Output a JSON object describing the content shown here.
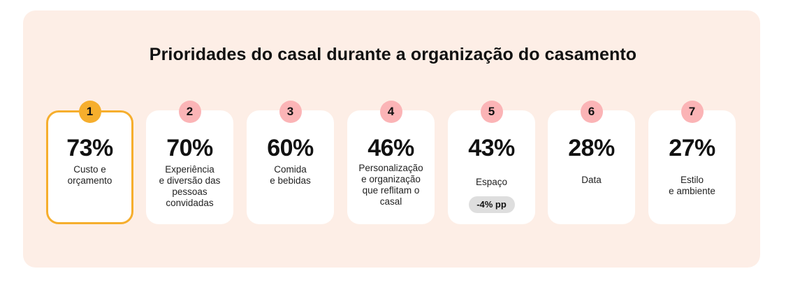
{
  "title": "Prioridades do casal durante a organização do casamento",
  "colors": {
    "panel_background": "#fdeee6",
    "card_background": "#ffffff",
    "badge_default": "#fbb4b6",
    "badge_highlight": "#f6ae2d",
    "highlight_border": "#f6ae2d",
    "delta_badge": "#dedede"
  },
  "chart_data": {
    "type": "table",
    "title": "Prioridades do casal durante a organização do casamento",
    "items": [
      {
        "rank": "1",
        "value": "73%",
        "label": "Custo e\norçamento",
        "highlight": true
      },
      {
        "rank": "2",
        "value": "70%",
        "label": "Experiência\ne diversão das\npessoas\nconvidadas",
        "highlight": false
      },
      {
        "rank": "3",
        "value": "60%",
        "label": "Comida\ne bebidas",
        "highlight": false
      },
      {
        "rank": "4",
        "value": "46%",
        "label": "Personalização\ne organização\nque reflitam o\ncasal",
        "highlight": false
      },
      {
        "rank": "5",
        "value": "43%",
        "label": "Espaço",
        "delta": "-4% pp",
        "highlight": false
      },
      {
        "rank": "6",
        "value": "28%",
        "label": "Data",
        "highlight": false
      },
      {
        "rank": "7",
        "value": "27%",
        "label": "Estilo\ne ambiente",
        "highlight": false
      }
    ]
  }
}
